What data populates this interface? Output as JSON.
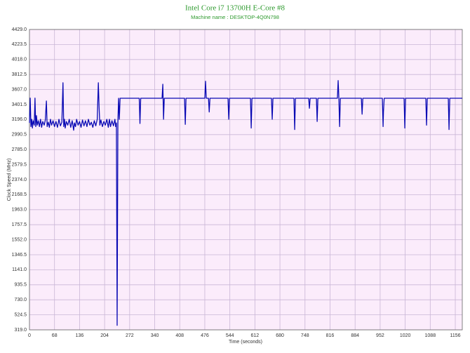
{
  "chart_data": {
    "type": "line",
    "title": "Intel Core i7 13700H E-Core #8",
    "subtitle": "Machine name : DESKTOP-4Q0N798",
    "x_label": "Time (seconds)",
    "y_label": "Clock Speed (MHz)",
    "grid": true,
    "background": "#fbecfb",
    "grid_color": "#c9b6d6",
    "xlim": [
      0,
      1175
    ],
    "ylim": [
      319,
      4429
    ],
    "xticks": [
      0,
      68,
      136,
      204,
      272,
      340,
      408,
      476,
      544,
      612,
      680,
      748,
      816,
      884,
      952,
      1020,
      1088,
      1156
    ],
    "yticks": [
      {
        "value": 319,
        "label": "319.0"
      },
      524.5,
      {
        "value": 730,
        "label": "730.0"
      },
      935.5,
      {
        "value": 1141,
        "label": "1141.0"
      },
      1346.5,
      {
        "value": 1552,
        "label": "1552.0"
      },
      1757.5,
      {
        "value": 1963,
        "label": "1963.0"
      },
      2168.5,
      {
        "value": 2374,
        "label": "2374.0"
      },
      2579.5,
      {
        "value": 2785,
        "label": "2785.0"
      },
      2990.5,
      {
        "value": 3196,
        "label": "3196.0"
      },
      3401.5,
      {
        "value": 3607,
        "label": "3607.0"
      },
      3812.5,
      {
        "value": 4018,
        "label": "4018.0"
      },
      4223.5,
      {
        "value": 4429,
        "label": "4429.0"
      }
    ],
    "series": [
      {
        "name": "Clock Speed",
        "color": "#0a0ab4",
        "x": [
          0,
          2,
          4,
          6,
          8,
          10,
          13,
          15,
          17,
          19,
          21,
          24,
          27,
          30,
          33,
          36,
          40,
          43,
          46,
          48,
          51,
          54,
          57,
          60,
          64,
          68,
          72,
          76,
          80,
          84,
          88,
          91,
          93,
          95,
          97,
          100,
          104,
          108,
          112,
          116,
          120,
          122,
          125,
          128,
          132,
          136,
          140,
          144,
          148,
          152,
          156,
          160,
          164,
          168,
          172,
          176,
          180,
          184,
          187,
          189,
          191,
          194,
          198,
          202,
          206,
          210,
          214,
          217,
          220,
          224,
          228,
          232,
          234,
          236,
          238,
          240,
          242,
          244,
          246,
          248,
          298,
          300,
          302,
          360,
          362,
          364,
          366,
          421,
          423,
          425,
          476,
          478,
          480,
          486,
          488,
          490,
          539,
          541,
          543,
          600,
          602,
          604,
          657,
          659,
          661,
          718,
          720,
          722,
          758,
          760,
          762,
          779,
          781,
          783,
          836,
          838,
          840,
          842,
          844,
          901,
          903,
          905,
          958,
          960,
          961,
          963,
          1017,
          1019,
          1021,
          1076,
          1078,
          1080,
          1137,
          1139,
          1141,
          1175
        ],
        "values": [
          3150,
          3490,
          3100,
          3200,
          3080,
          3180,
          3120,
          3490,
          3100,
          3250,
          3120,
          3180,
          3100,
          3200,
          3090,
          3170,
          3120,
          3190,
          3450,
          3100,
          3160,
          3090,
          3200,
          3120,
          3180,
          3100,
          3170,
          3090,
          3200,
          3110,
          3160,
          3700,
          3100,
          3200,
          3080,
          3170,
          3120,
          3200,
          3090,
          3180,
          3050,
          3150,
          3100,
          3200,
          3120,
          3170,
          3090,
          3190,
          3110,
          3180,
          3100,
          3200,
          3120,
          3160,
          3090,
          3180,
          3110,
          3200,
          3700,
          3370,
          3120,
          3190,
          3100,
          3170,
          3120,
          3200,
          3090,
          3200,
          3100,
          3180,
          3110,
          3200,
          3100,
          3150,
          380,
          3150,
          3488,
          3200,
          3488,
          3488,
          3488,
          3142,
          3488,
          3488,
          3680,
          3200,
          3488,
          3488,
          3130,
          3488,
          3488,
          3720,
          3488,
          3488,
          3300,
          3488,
          3488,
          3200,
          3488,
          3488,
          3080,
          3488,
          3488,
          3200,
          3488,
          3488,
          3060,
          3488,
          3488,
          3350,
          3488,
          3488,
          3170,
          3488,
          3488,
          3730,
          3488,
          3100,
          3488,
          3488,
          3270,
          3488,
          3488,
          3100,
          3300,
          3488,
          3488,
          3080,
          3488,
          3488,
          3120,
          3488,
          3488,
          3060,
          3488,
          3488
        ]
      }
    ]
  }
}
